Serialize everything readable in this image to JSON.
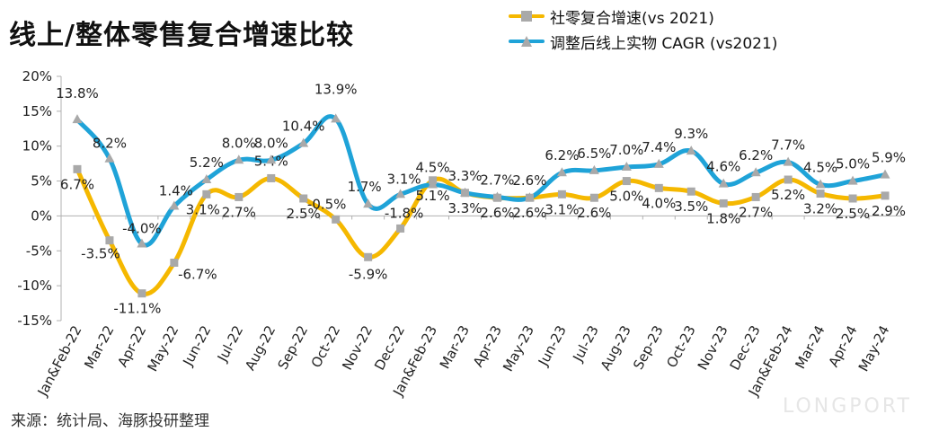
{
  "title": "线上/整体零售复合增速比较",
  "source": "来源：统计局、海豚投研整理",
  "watermark": "LONGPORT",
  "colors": {
    "yellow": "#F5B800",
    "blue": "#1FA3D8",
    "marker": "#A9A9A9",
    "axis": "#B0B0B0"
  },
  "chart_data": {
    "type": "line",
    "title": "线上/整体零售复合增速比较",
    "categories": [
      "Jan&Feb-22",
      "Mar-22",
      "Apr-22",
      "May-22",
      "Jun-22",
      "Jul-22",
      "Aug-22",
      "Sep-22",
      "Oct-22",
      "Nov-22",
      "Dec-22",
      "Jan&Feb-23",
      "Mar-23",
      "Apr-23",
      "May-23",
      "Jun-23",
      "Jul-23",
      "Aug-23",
      "Sep-23",
      "Oct-23",
      "Nov-23",
      "Dec-23",
      "Jan&Feb-24",
      "Mar-24",
      "Apr-24",
      "May-24"
    ],
    "ylim": [
      -15,
      20
    ],
    "yticks": [
      -15,
      -10,
      -5,
      0,
      5,
      10,
      15,
      20
    ],
    "ytick_labels": [
      "-15%",
      "-10%",
      "-5%",
      "0%",
      "5%",
      "10%",
      "15%",
      "20%"
    ],
    "legend_position": "top-right",
    "grid": false,
    "series": [
      {
        "name": "社零复合增速(vs 2021)",
        "color": "#F5B800",
        "values": [
          6.7,
          -3.5,
          -11.1,
          -6.7,
          3.1,
          2.7,
          5.4,
          2.5,
          -0.5,
          -5.9,
          -1.8,
          5.1,
          3.3,
          2.6,
          2.6,
          3.1,
          2.6,
          5.0,
          4.0,
          3.5,
          1.8,
          2.7,
          5.2,
          3.2,
          2.5,
          2.9
        ],
        "labels": [
          "6.7%",
          "-3.5%",
          "-11.1%",
          "-6.7%",
          "3.1%",
          "2.7%",
          "5.4%",
          "2.5%",
          "-0.5%",
          "-5.9%",
          "-1.8%",
          "5.1%",
          "3.3%",
          "2.6%",
          "2.6%",
          "3.1%",
          "2.6%",
          "5.0%",
          "4.0%",
          "3.5%",
          "1.8%",
          "2.7%",
          "5.2%",
          "3.2%",
          "2.5%",
          "2.9%"
        ]
      },
      {
        "name": "调整后线上实物 CAGR (vs2021)",
        "color": "#1FA3D8",
        "values": [
          13.8,
          8.2,
          -4.0,
          1.4,
          5.2,
          8.0,
          8.0,
          10.4,
          13.9,
          1.7,
          3.1,
          4.5,
          3.3,
          2.7,
          2.6,
          6.2,
          6.5,
          7.0,
          7.4,
          9.3,
          4.6,
          6.2,
          7.7,
          4.5,
          5.0,
          5.9
        ],
        "labels": [
          "13.8%",
          "8.2%",
          "-4.0%",
          "1.4%",
          "5.2%",
          "8.0%",
          "8.0%",
          "10.4%",
          "13.9%",
          "1.7%",
          "3.1%",
          "4.5%",
          "3.3%",
          "2.7%",
          "2.6%",
          "6.2%",
          "6.5%",
          "7.0%",
          "7.4%",
          "9.3%",
          "4.6%",
          "6.2%",
          "7.7%",
          "4.5%",
          "5.0%",
          "5.9%"
        ]
      }
    ]
  }
}
